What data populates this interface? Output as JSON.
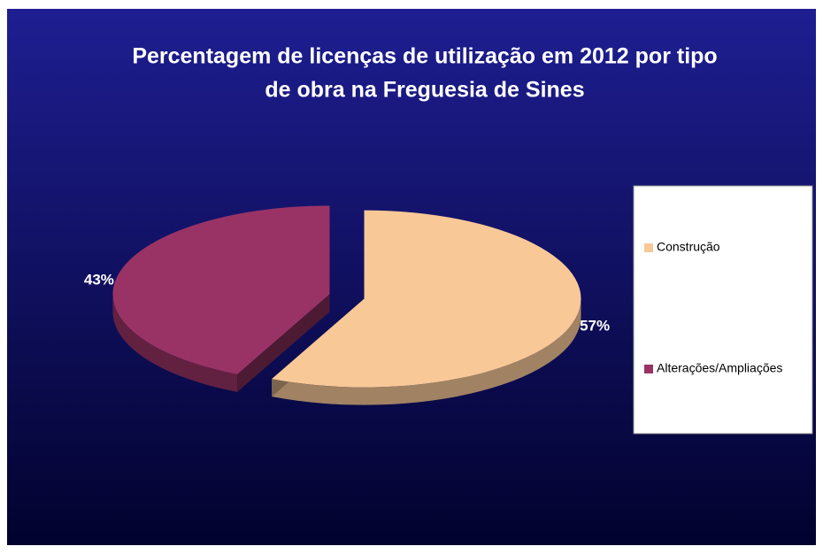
{
  "chart_data": {
    "type": "pie",
    "title": "Percentagem de licenças de utilização em 2012 por tipo de obra na Freguesia de Sines",
    "title_lines": [
      "Percentagem de licenças de utilização em 2012 por tipo",
      "de obra na Freguesia de Sines"
    ],
    "categories": [
      "Construção",
      "Alterações/Ampliações"
    ],
    "values": [
      57,
      43
    ],
    "value_labels": [
      "57%",
      "43%"
    ],
    "colors": [
      "#f8c897",
      "#993366"
    ],
    "legend": "right"
  }
}
